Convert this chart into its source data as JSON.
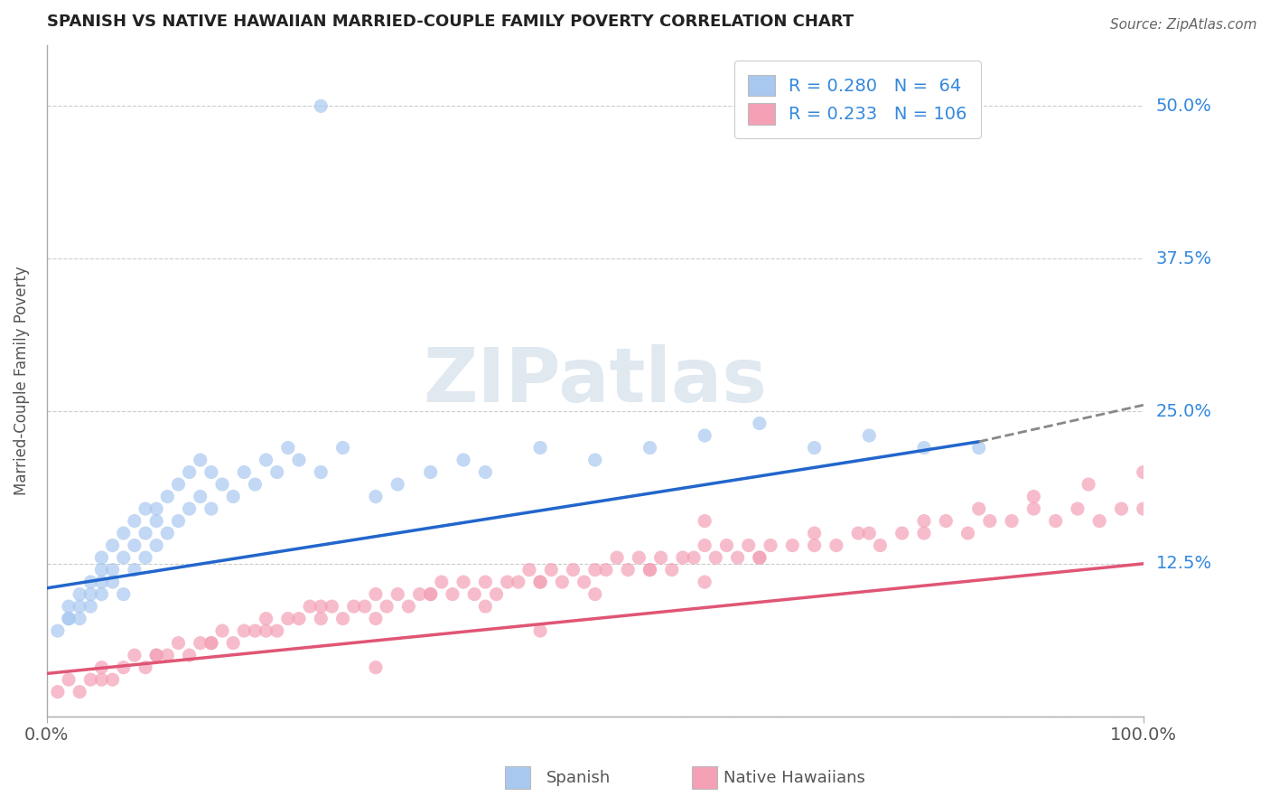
{
  "title": "SPANISH VS NATIVE HAWAIIAN MARRIED-COUPLE FAMILY POVERTY CORRELATION CHART",
  "source": "Source: ZipAtlas.com",
  "ylabel": "Married-Couple Family Poverty",
  "xlim": [
    0,
    100
  ],
  "ylim": [
    0,
    55
  ],
  "yticks": [
    0,
    12.5,
    25.0,
    37.5,
    50.0
  ],
  "xticks": [
    0,
    100
  ],
  "xtick_labels": [
    "0.0%",
    "100.0%"
  ],
  "spanish_color": "#a8c8f0",
  "hawaiian_color": "#f4a0b5",
  "spanish_line_color": "#2266cc",
  "hawaiian_line_color": "#e05575",
  "legend_blue_text": "#3388dd",
  "watermark_color": "#e0e8f0",
  "R_spanish": 0.28,
  "N_spanish": 64,
  "R_hawaiian": 0.233,
  "N_hawaiian": 106,
  "spanish_x": [
    1,
    2,
    2,
    3,
    3,
    4,
    4,
    5,
    5,
    5,
    6,
    6,
    7,
    7,
    8,
    8,
    9,
    9,
    10,
    10,
    11,
    12,
    13,
    14,
    15,
    16,
    17,
    18,
    19,
    20,
    21,
    22,
    23,
    25,
    27,
    30,
    32,
    35,
    38,
    40,
    45,
    50,
    55,
    60,
    65,
    70,
    75,
    80,
    85,
    2,
    3,
    4,
    5,
    6,
    7,
    8,
    9,
    10,
    11,
    12,
    13,
    14,
    15,
    25
  ],
  "spanish_y": [
    7,
    8,
    9,
    8,
    9,
    10,
    9,
    11,
    10,
    12,
    11,
    12,
    10,
    13,
    12,
    14,
    13,
    15,
    14,
    16,
    15,
    16,
    17,
    18,
    17,
    19,
    18,
    20,
    19,
    21,
    20,
    22,
    21,
    20,
    22,
    18,
    19,
    20,
    21,
    20,
    22,
    21,
    22,
    23,
    24,
    22,
    23,
    22,
    22,
    8,
    10,
    11,
    13,
    14,
    15,
    16,
    17,
    17,
    18,
    19,
    20,
    21,
    20,
    50
  ],
  "hawaiian_x": [
    1,
    2,
    3,
    4,
    5,
    6,
    7,
    8,
    9,
    10,
    11,
    12,
    13,
    14,
    15,
    16,
    17,
    18,
    19,
    20,
    21,
    22,
    23,
    24,
    25,
    26,
    27,
    28,
    29,
    30,
    31,
    32,
    33,
    34,
    35,
    36,
    37,
    38,
    39,
    40,
    41,
    42,
    43,
    44,
    45,
    46,
    47,
    48,
    49,
    50,
    51,
    52,
    53,
    54,
    55,
    56,
    57,
    58,
    59,
    60,
    61,
    62,
    63,
    64,
    65,
    66,
    68,
    70,
    72,
    74,
    76,
    78,
    80,
    82,
    84,
    86,
    88,
    90,
    92,
    94,
    96,
    98,
    100,
    5,
    10,
    15,
    20,
    25,
    30,
    35,
    40,
    45,
    50,
    55,
    60,
    65,
    70,
    75,
    80,
    85,
    90,
    95,
    100,
    30,
    45,
    60
  ],
  "hawaiian_y": [
    2,
    3,
    2,
    3,
    4,
    3,
    4,
    5,
    4,
    5,
    5,
    6,
    5,
    6,
    6,
    7,
    6,
    7,
    7,
    8,
    7,
    8,
    8,
    9,
    8,
    9,
    8,
    9,
    9,
    10,
    9,
    10,
    9,
    10,
    10,
    11,
    10,
    11,
    10,
    11,
    10,
    11,
    11,
    12,
    11,
    12,
    11,
    12,
    11,
    12,
    12,
    13,
    12,
    13,
    12,
    13,
    12,
    13,
    13,
    14,
    13,
    14,
    13,
    14,
    13,
    14,
    14,
    15,
    14,
    15,
    14,
    15,
    15,
    16,
    15,
    16,
    16,
    17,
    16,
    17,
    16,
    17,
    17,
    3,
    5,
    6,
    7,
    9,
    8,
    10,
    9,
    11,
    10,
    12,
    11,
    13,
    14,
    15,
    16,
    17,
    18,
    19,
    20,
    4,
    7,
    16
  ],
  "sp_line_x0": 0,
  "sp_line_y0": 10.5,
  "sp_line_x1": 85,
  "sp_line_y1": 22.5,
  "sp_dash_x1": 100,
  "sp_dash_y1": 25.5,
  "hw_line_x0": 0,
  "hw_line_y0": 3.5,
  "hw_line_x1": 100,
  "hw_line_y1": 12.5
}
